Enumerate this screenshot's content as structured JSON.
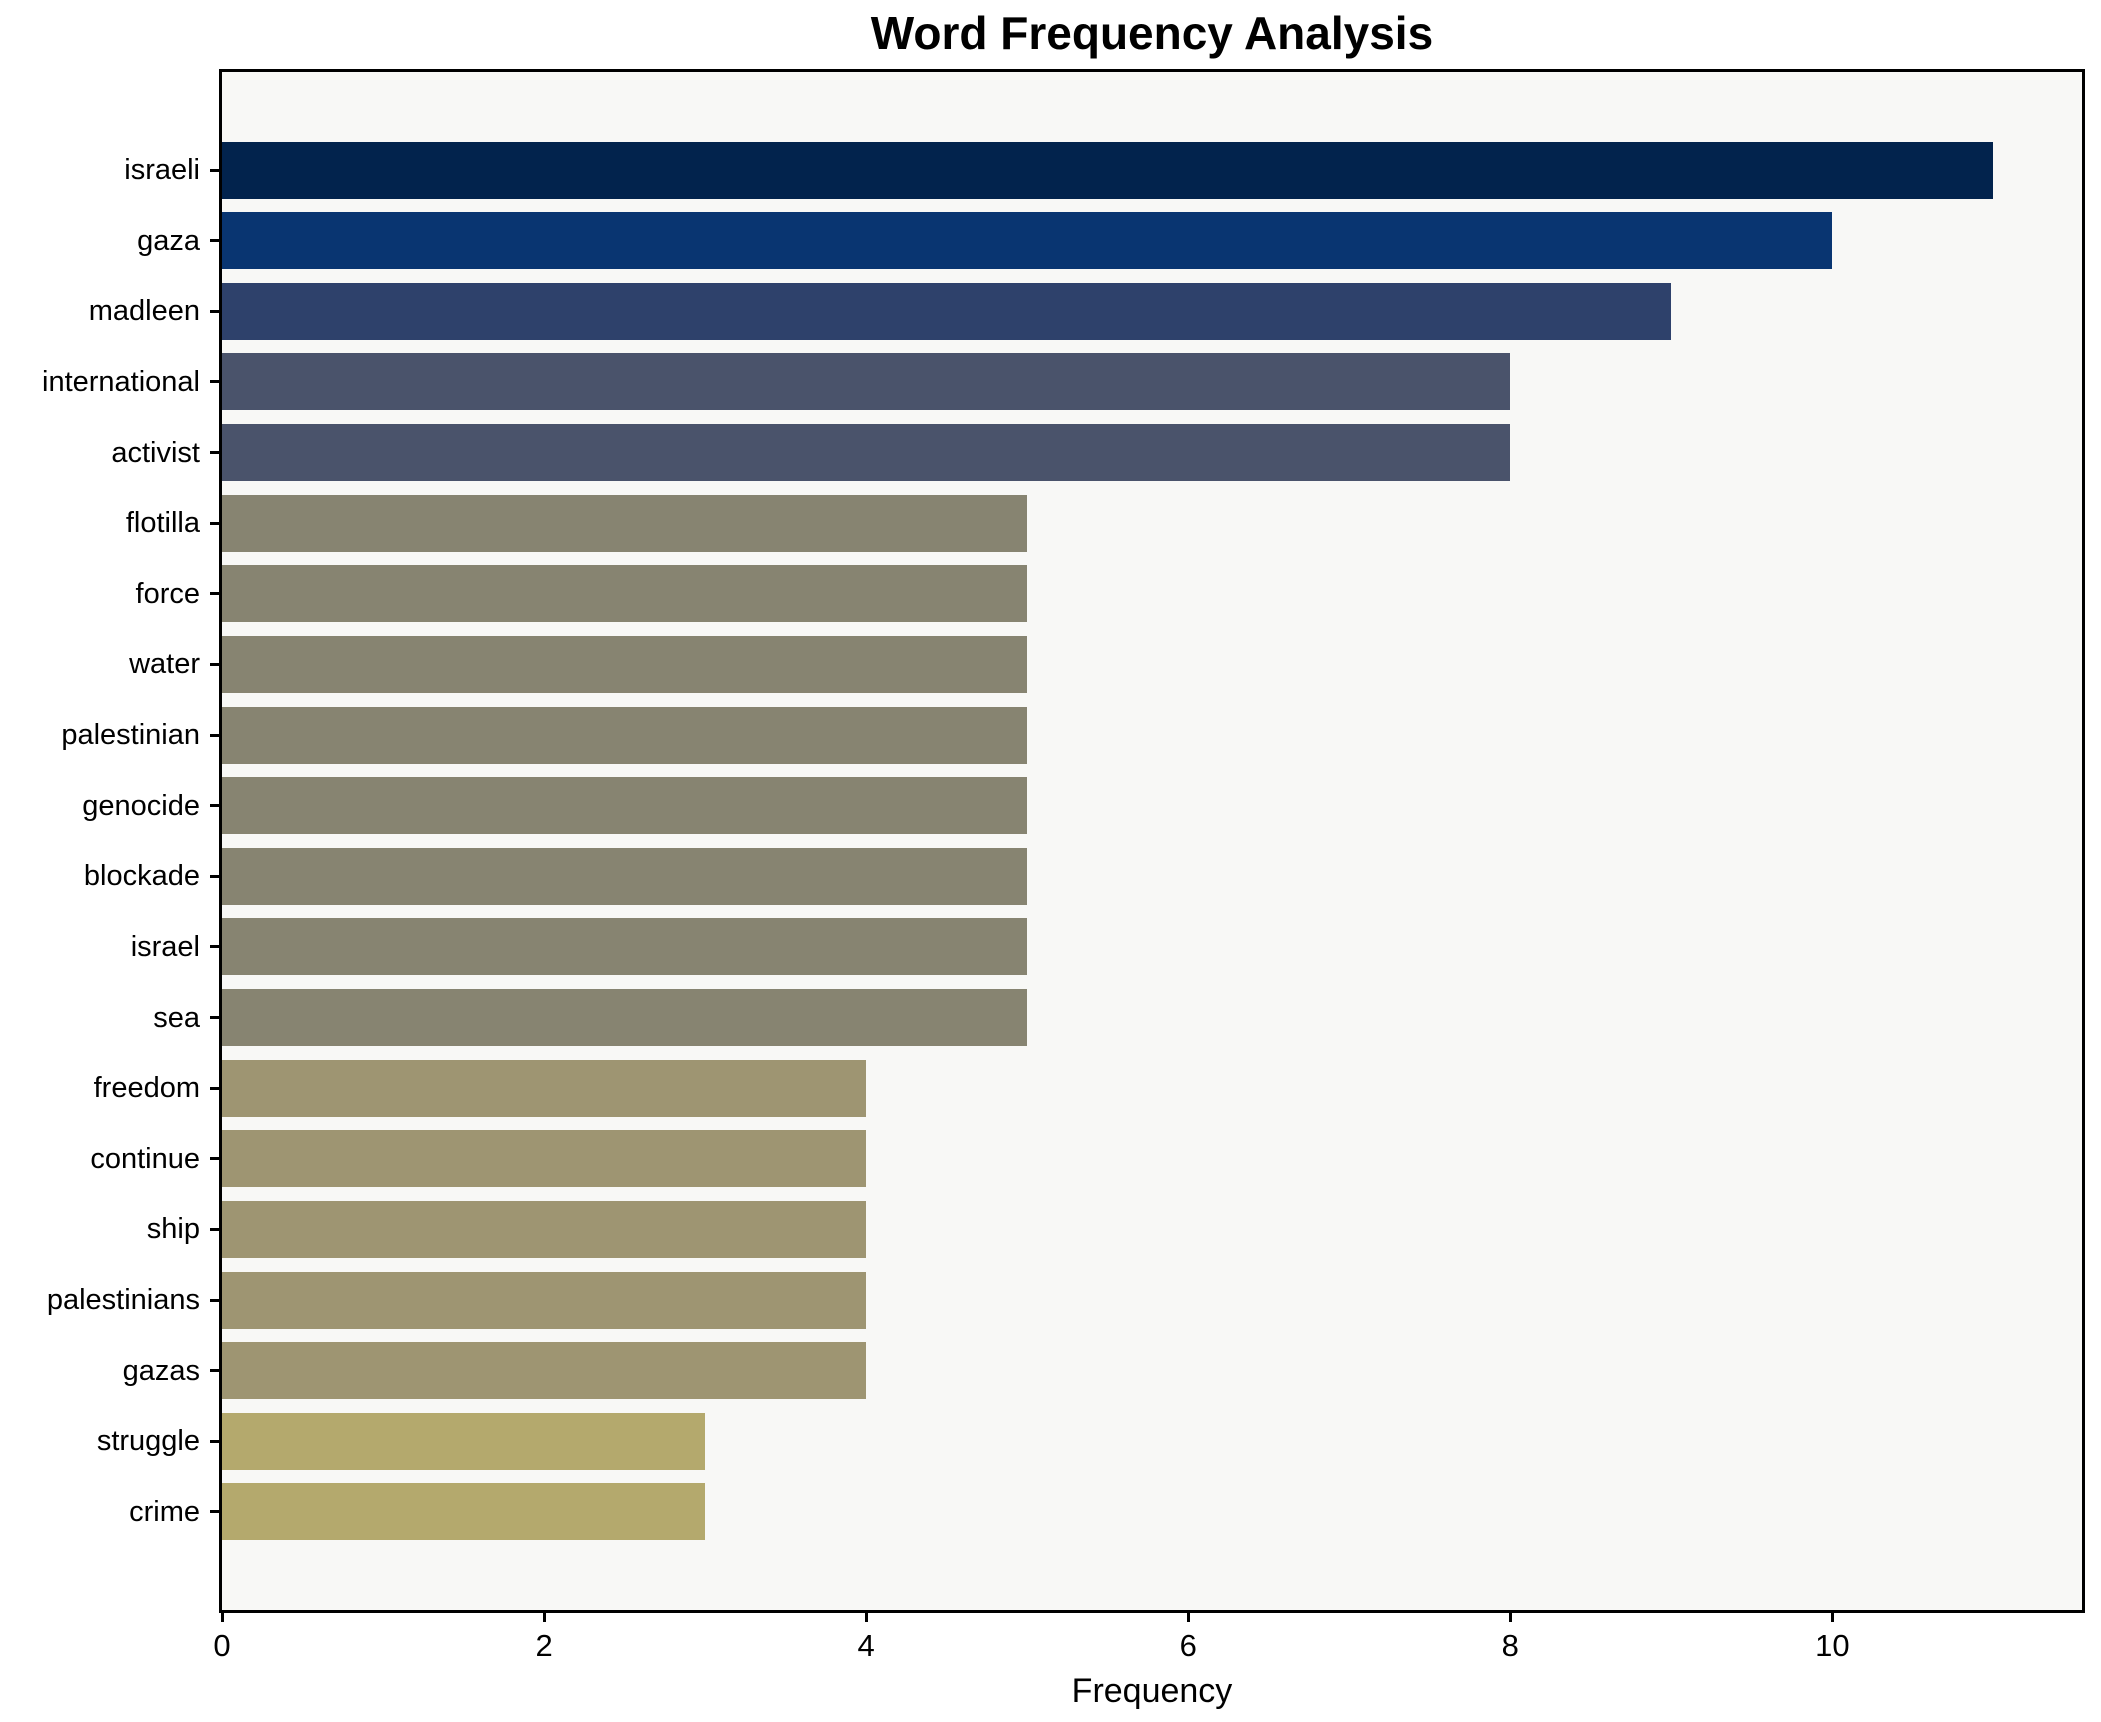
{
  "chart_data": {
    "type": "bar",
    "orientation": "horizontal",
    "title": "Word Frequency Analysis",
    "xlabel": "Frequency",
    "ylabel": "",
    "categories": [
      "israeli",
      "gaza",
      "madleen",
      "international",
      "activist",
      "flotilla",
      "force",
      "water",
      "palestinian",
      "genocide",
      "blockade",
      "israel",
      "sea",
      "freedom",
      "continue",
      "ship",
      "palestinians",
      "gazas",
      "struggle",
      "crime"
    ],
    "values": [
      11,
      10,
      9,
      8,
      8,
      5,
      5,
      5,
      5,
      5,
      5,
      5,
      5,
      4,
      4,
      4,
      4,
      4,
      3,
      3
    ],
    "bar_colors": [
      "#02234d",
      "#093571",
      "#2e416b",
      "#4a536b",
      "#4a536b",
      "#878471",
      "#878471",
      "#878471",
      "#878471",
      "#878471",
      "#878471",
      "#878471",
      "#878471",
      "#9e9572",
      "#9e9572",
      "#9e9572",
      "#9e9572",
      "#9e9572",
      "#b4a96d",
      "#b4a96d"
    ],
    "xticks": [
      0,
      2,
      4,
      6,
      8,
      10
    ],
    "xlim": [
      0,
      11.55
    ],
    "grid": false,
    "legend": "none",
    "plot_bg": "#f8f8f6",
    "figure_bg": "#ffffff",
    "spine_color": "#000000",
    "text_color": "#000000"
  }
}
